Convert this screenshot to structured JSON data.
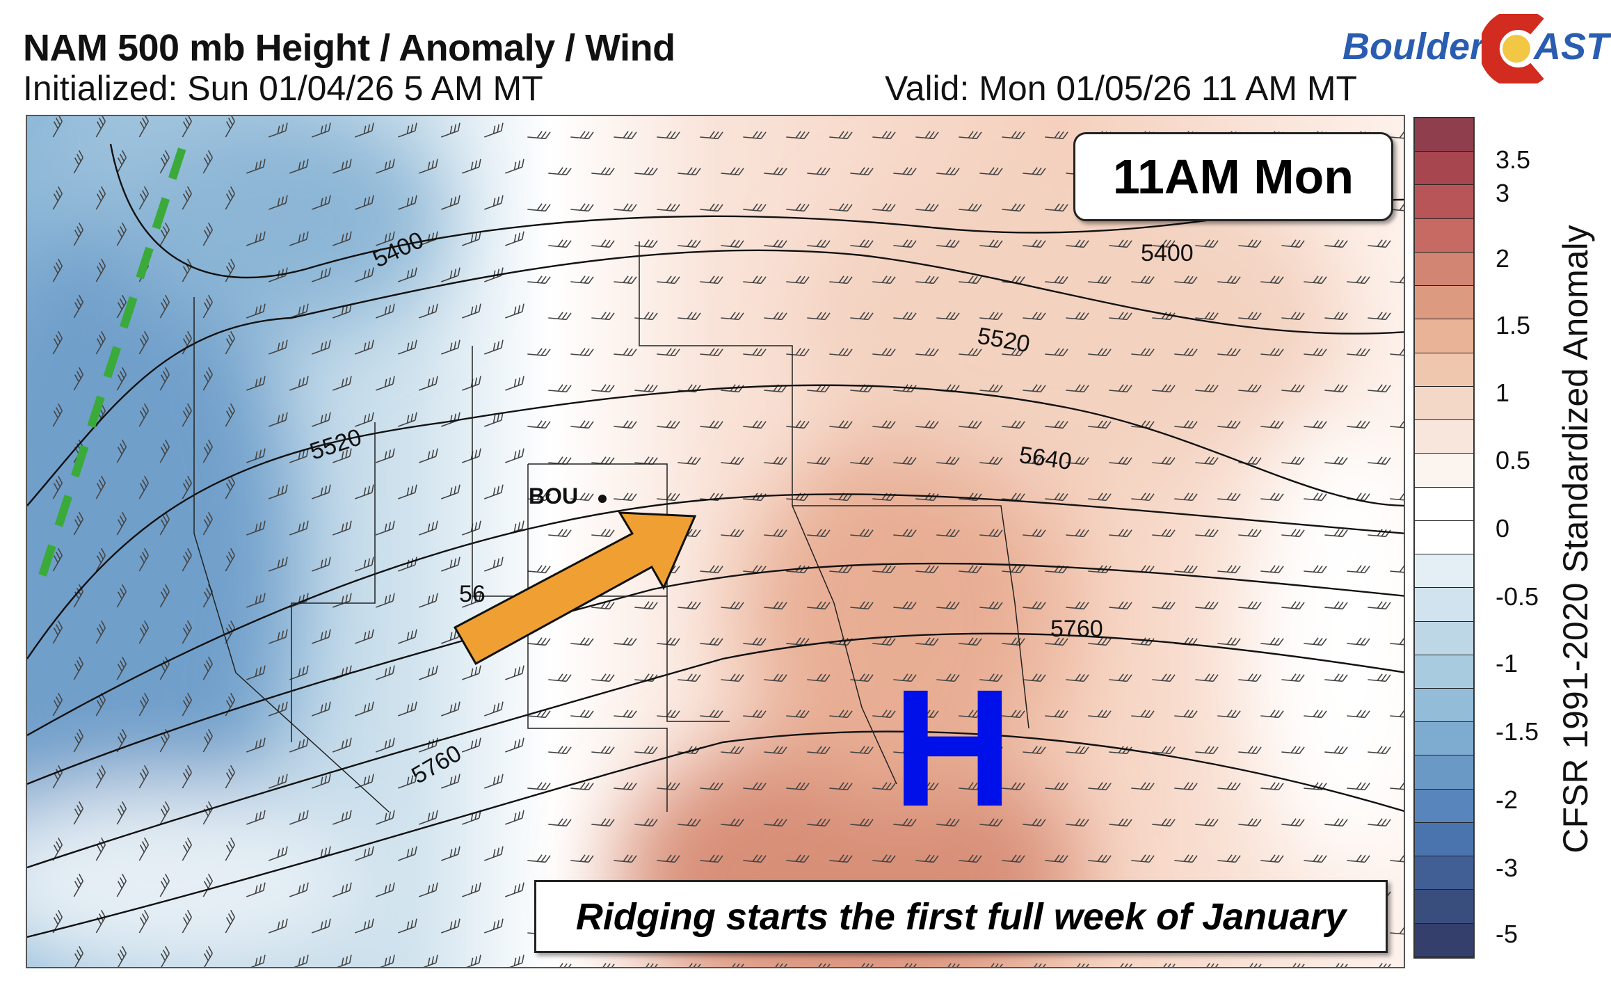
{
  "header": {
    "title": "NAM 500 mb Height / Anomaly / Wind",
    "initialized": "Initialized: Sun 01/04/26 5 AM MT",
    "valid": "Valid: Mon 01/05/26 11 AM MT"
  },
  "logo": {
    "text_left": "Boulder",
    "text_right": "AST",
    "colors": {
      "blue": "#2a5db0",
      "red": "#d22b1f",
      "yellow": "#f2c744"
    }
  },
  "map": {
    "time_label": "11AM Mon",
    "caption": "Ridging starts the first full week of January",
    "high_label": "H",
    "station_label": "BOU",
    "contour_labels": [
      "5400",
      "5400",
      "5520",
      "5520",
      "5640",
      "5760",
      "5760",
      "56"
    ],
    "annotations": {
      "arrow_color": "#f0a033",
      "trough_line_color": "#3aaa3a",
      "high_color": "#0010e8"
    }
  },
  "colorbar": {
    "title": "CFSR 1991-2020 Standardized Anomaly",
    "tick_labels": [
      "3.5",
      "3",
      "2",
      "1.5",
      "1",
      "0.5",
      "0",
      "-0.5",
      "-1",
      "-1.5",
      "-2",
      "-3",
      "-5"
    ],
    "colors": [
      "#8e3e4d",
      "#a84650",
      "#b85558",
      "#c76a63",
      "#d38573",
      "#dc9b81",
      "#e8b396",
      "#efc7ae",
      "#f3d7c7",
      "#f8e6dc",
      "#fcf4ef",
      "#ffffff",
      "#ffffff",
      "#e3eef5",
      "#d1e3ee",
      "#bdd7e7",
      "#a8cbe0",
      "#93bcd9",
      "#7eabd0",
      "#6b99c6",
      "#5886bc",
      "#4a74ad",
      "#415f94",
      "#3a4e7e",
      "#353f6b"
    ]
  }
}
